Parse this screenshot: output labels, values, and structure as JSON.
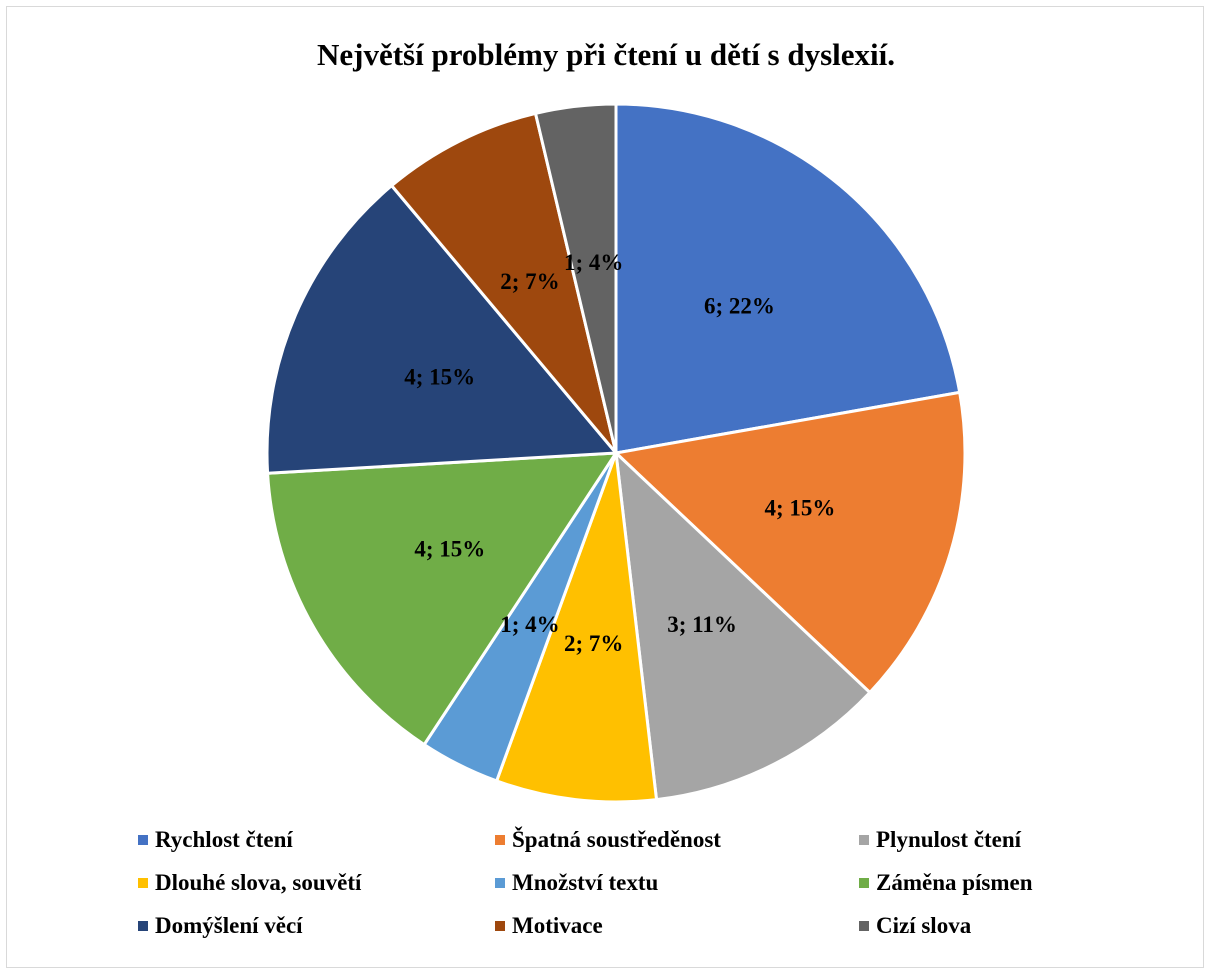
{
  "chart_data": {
    "type": "pie",
    "title": "Největší problémy při čtení u dětí s dyslexií.",
    "legend_position": "bottom",
    "slices": [
      {
        "label": "Rychlost čtení",
        "value": 6,
        "percent": "22%",
        "color": "#4472C4"
      },
      {
        "label": "Špatná soustředěnost",
        "value": 4,
        "percent": "15%",
        "color": "#ED7D31"
      },
      {
        "label": "Plynulost čtení",
        "value": 3,
        "percent": "11%",
        "color": "#A5A5A5"
      },
      {
        "label": "Dlouhé slova, souvětí",
        "value": 2,
        "percent": "7%",
        "color": "#FFC000"
      },
      {
        "label": "Množství textu",
        "value": 1,
        "percent": "4%",
        "color": "#5B9BD5"
      },
      {
        "label": "Záměna písmen",
        "value": 4,
        "percent": "15%",
        "color": "#70AD47"
      },
      {
        "label": "Domýšlení věcí",
        "value": 4,
        "percent": "15%",
        "color": "#264478"
      },
      {
        "label": "Motivace",
        "value": 2,
        "percent": "7%",
        "color": "#9E480E"
      },
      {
        "label": "Cizí slova",
        "value": 1,
        "percent": "4%",
        "color": "#636363"
      }
    ]
  }
}
